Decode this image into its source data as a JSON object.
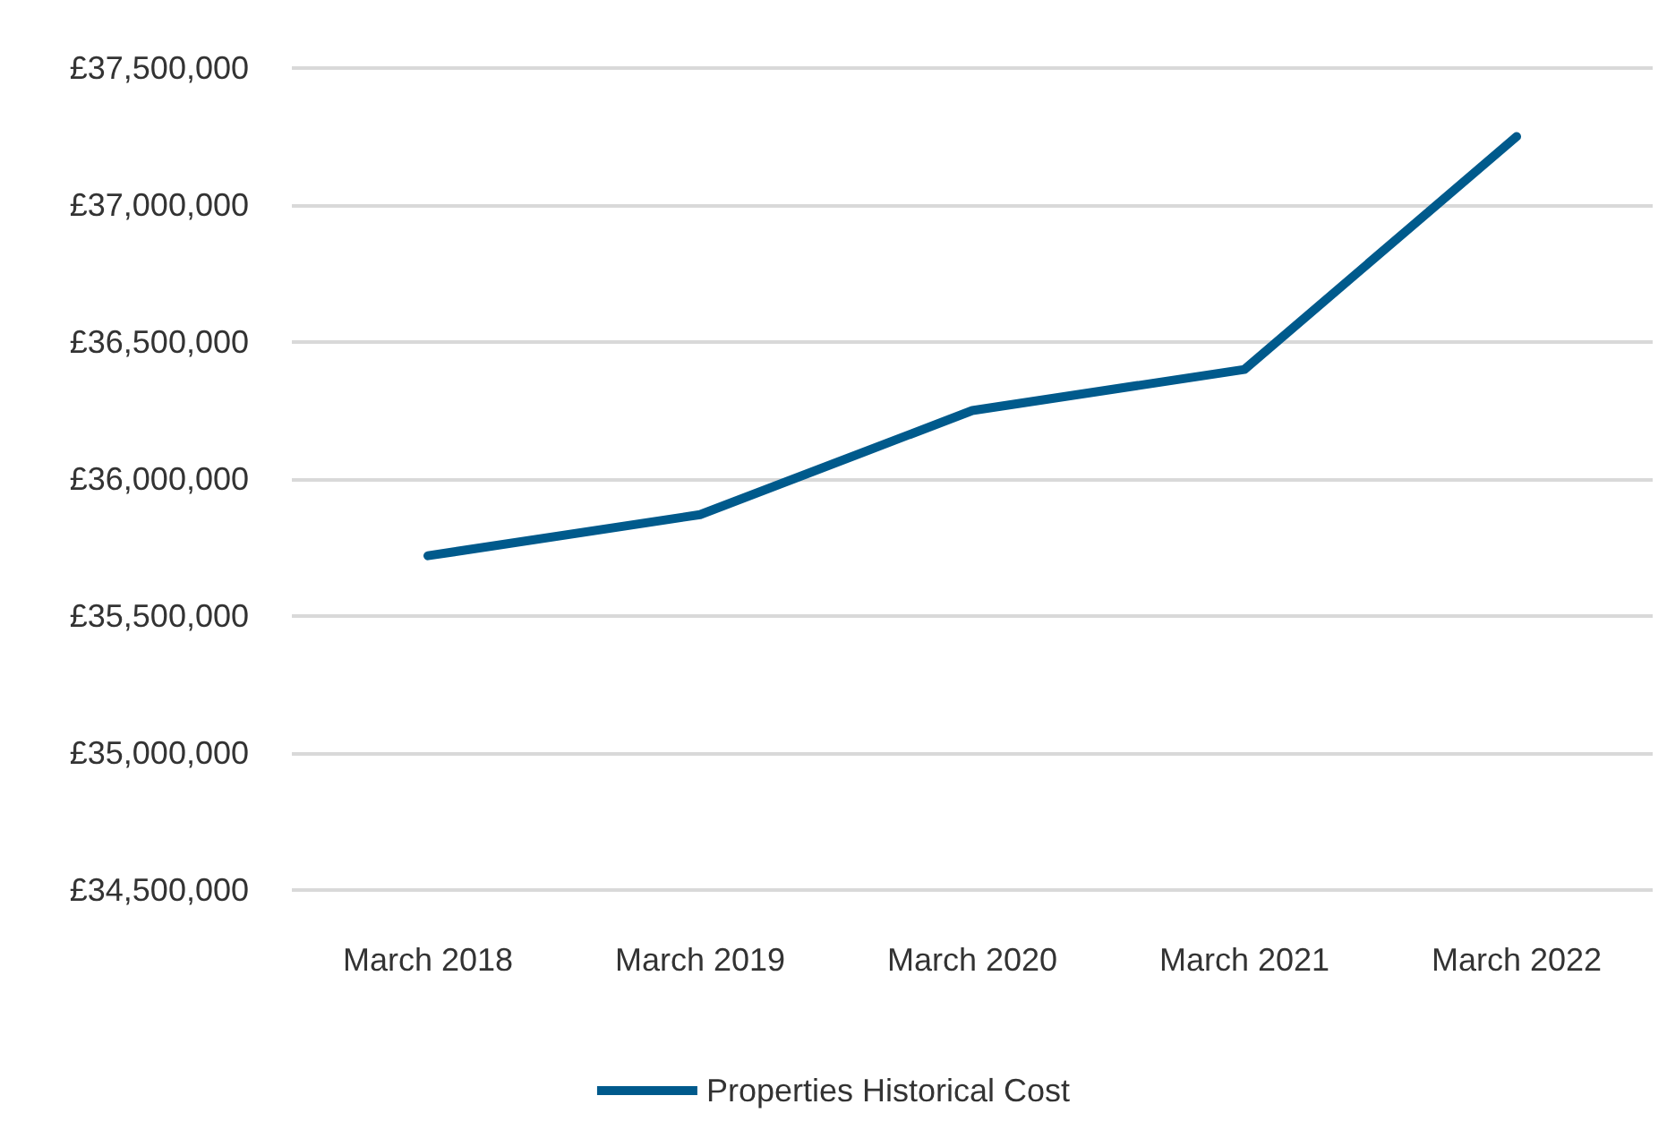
{
  "chart_data": {
    "type": "line",
    "categories": [
      "March 2018",
      "March 2019",
      "March 2020",
      "March 2021",
      "March 2022"
    ],
    "series": [
      {
        "name": "Properties Historical Cost",
        "color": "#005a8c",
        "values": [
          35720000,
          35870000,
          36250000,
          36400000,
          37250000
        ]
      }
    ],
    "ylim": [
      34500000,
      37500000
    ],
    "yticks": [
      {
        "value": 34500000,
        "label": "£34,500,000"
      },
      {
        "value": 35000000,
        "label": "£35,000,000"
      },
      {
        "value": 35500000,
        "label": "£35,500,000"
      },
      {
        "value": 36000000,
        "label": "£36,000,000"
      },
      {
        "value": 36500000,
        "label": "£36,500,000"
      },
      {
        "value": 37000000,
        "label": "£37,000,000"
      },
      {
        "value": 37500000,
        "label": "£37,500,000"
      }
    ],
    "grid": "y",
    "legend": "bottom",
    "marker": "none",
    "line_style": "solid"
  }
}
